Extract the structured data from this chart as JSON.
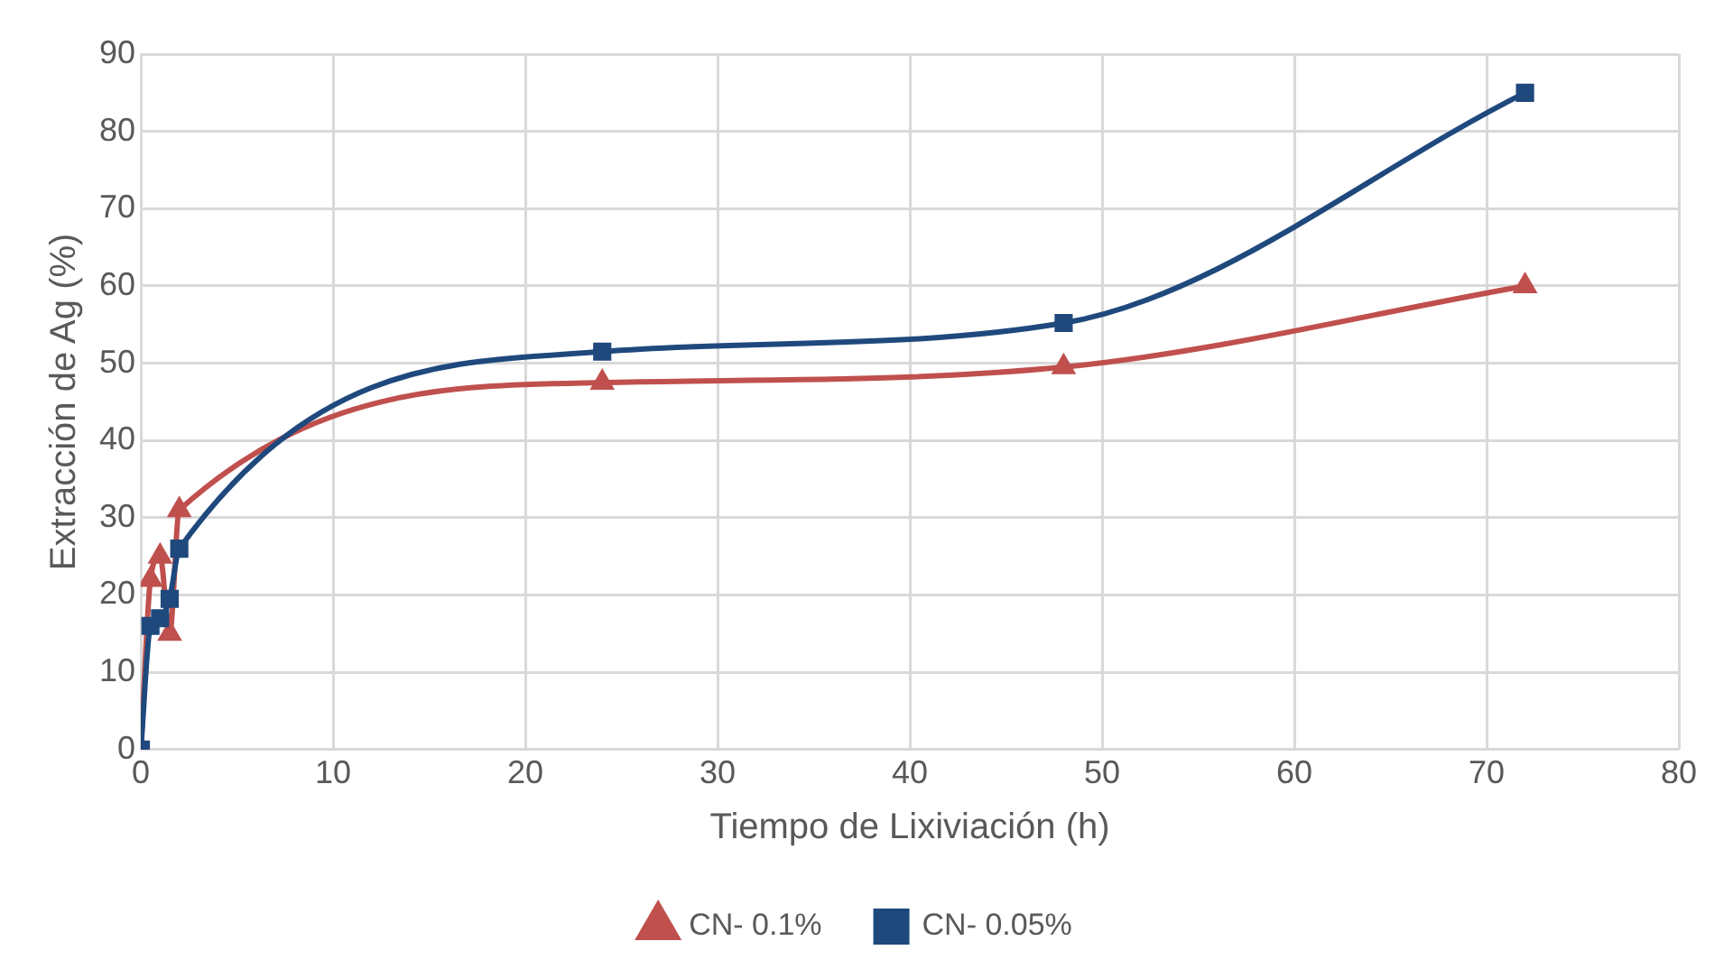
{
  "chart_data": {
    "type": "line",
    "xlabel": "Tiempo de Lixiviación (h)",
    "ylabel": "Extracción de Ag (%)",
    "x": [
      0,
      0.5,
      1,
      1.5,
      2,
      24,
      48,
      72
    ],
    "series": [
      {
        "name": "CN- 0.1%",
        "color": "#c0504d",
        "marker": "triangle",
        "values": [
          0,
          22,
          25,
          15,
          31,
          47.5,
          49.5,
          60
        ]
      },
      {
        "name": "CN- 0.05%",
        "color": "#1f497d",
        "marker": "square",
        "values": [
          0,
          16,
          17,
          19.5,
          26,
          51.5,
          55.2,
          85
        ]
      }
    ],
    "xlim": [
      0,
      80
    ],
    "xticks": [
      0,
      10,
      20,
      30,
      40,
      50,
      60,
      70,
      80
    ],
    "ylim": [
      0,
      90
    ],
    "yticks": [
      0,
      10,
      20,
      30,
      40,
      50,
      60,
      70,
      80,
      90
    ],
    "grid": true,
    "legend": "bottom"
  }
}
